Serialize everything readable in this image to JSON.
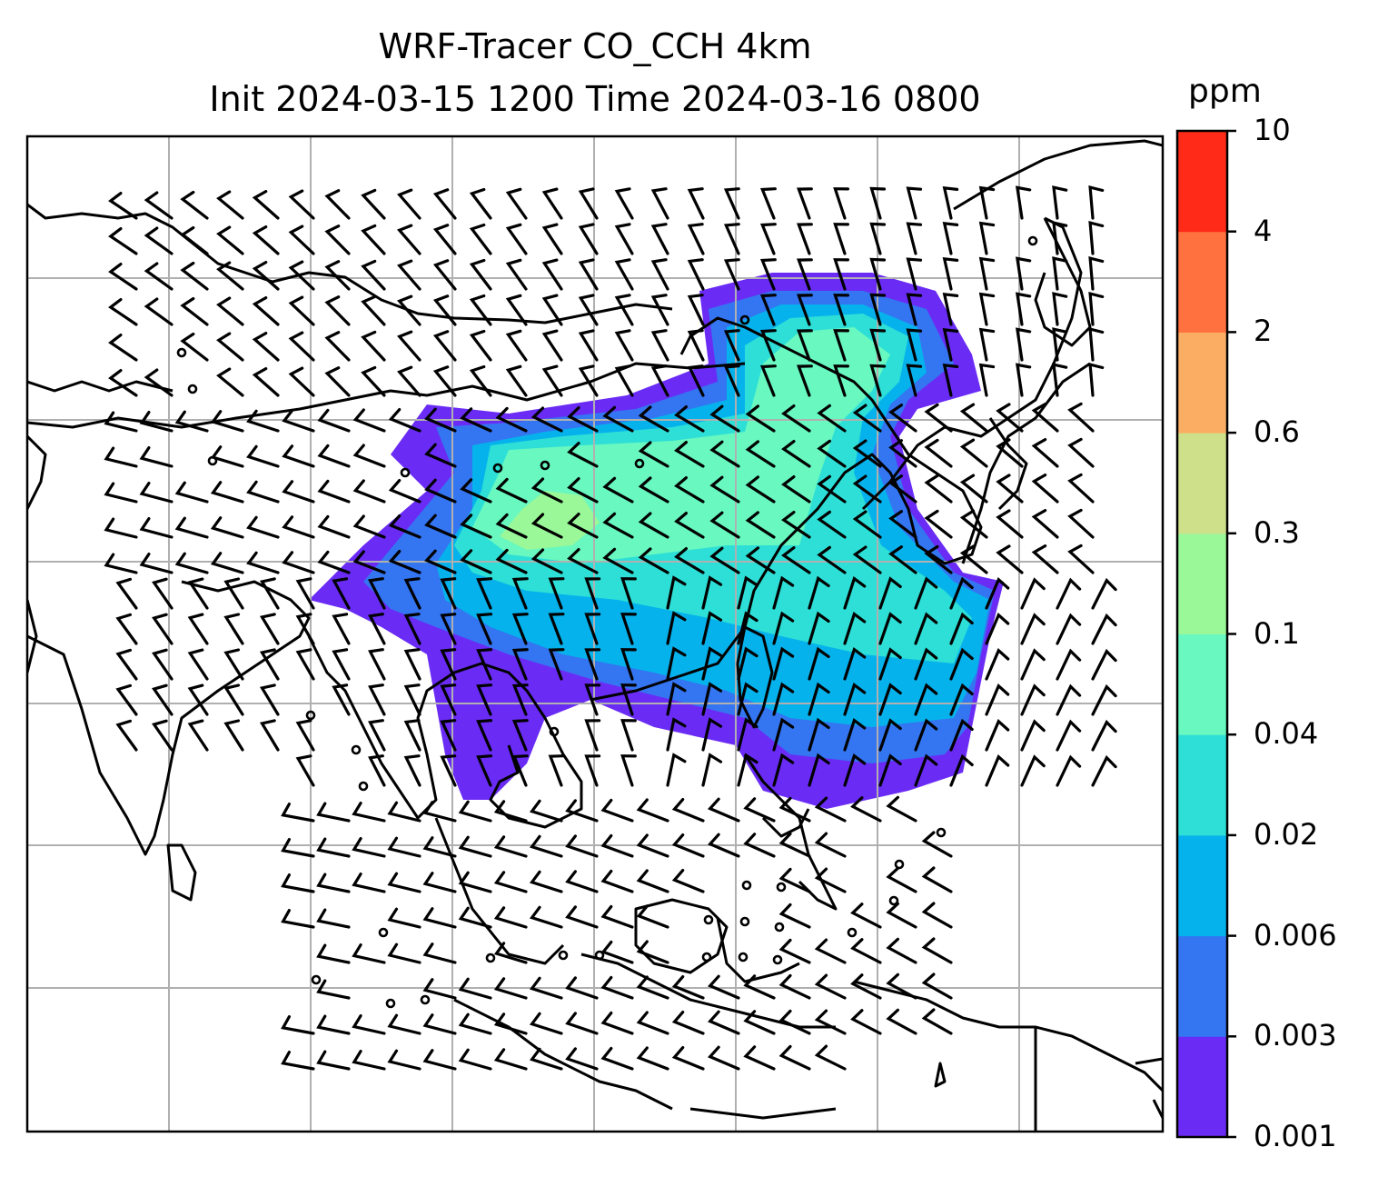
{
  "title": {
    "line1": "WRF-Tracer CO_CCH 4km",
    "line2": "Init 2024-03-15 1200 Time 2024-03-16 0800"
  },
  "colorbar": {
    "unit": "ppm",
    "levels": [
      "0.001",
      "0.003",
      "0.006",
      "0.02",
      "0.04",
      "0.1",
      "0.3",
      "0.6",
      "2",
      "4",
      "10"
    ],
    "colors": [
      "#6a2cf5",
      "#3475f1",
      "#06b2ec",
      "#2ddfd6",
      "#68f8c0",
      "#9af899",
      "#cfe08a",
      "#fbae63",
      "#ff713e",
      "#ff2a17"
    ]
  },
  "map": {
    "gridlines": true,
    "coastline_color": "#000000",
    "grid_color": "#b0b0b0"
  }
}
